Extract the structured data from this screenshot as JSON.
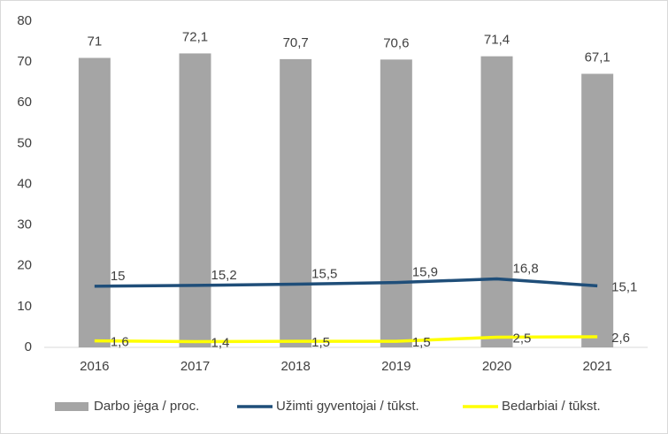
{
  "chart_data": {
    "type": "bar",
    "categories": [
      "2016",
      "2017",
      "2018",
      "2019",
      "2020",
      "2021"
    ],
    "series": [
      {
        "name": "Darbo jėga / proc.",
        "type": "bar",
        "color": "#a5a5a5",
        "values": [
          71,
          72.1,
          70.7,
          70.6,
          71.4,
          67.1
        ],
        "value_labels": [
          "71",
          "72,1",
          "70,7",
          "70,6",
          "71,4",
          "67,1"
        ]
      },
      {
        "name": "Užimti gyventojai / tūkst.",
        "type": "line",
        "color": "#1f4e79",
        "values": [
          15,
          15.2,
          15.5,
          15.9,
          16.8,
          15.1
        ],
        "value_labels": [
          "15",
          "15,2",
          "15,5",
          "15,9",
          "16,8",
          "15,1"
        ]
      },
      {
        "name": "Bedarbiai / tūkst.",
        "type": "line",
        "color": "#ffff00",
        "values": [
          1.6,
          1.4,
          1.5,
          1.5,
          2.5,
          2.6
        ],
        "value_labels": [
          "1,6",
          "1,4",
          "1,5",
          "1,5",
          "2,5",
          "2,6"
        ]
      }
    ],
    "ylim": [
      0,
      80
    ],
    "yticks": [
      0,
      10,
      20,
      30,
      40,
      50,
      60,
      70,
      80
    ],
    "grid": false,
    "legend": "bottom"
  }
}
